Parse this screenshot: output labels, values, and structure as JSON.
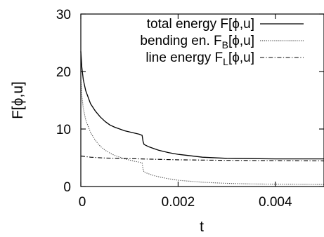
{
  "chart_data": {
    "type": "line",
    "xlabel": "t",
    "ylabel": "F[ϕ,u]",
    "xlim": [
      0,
      0.005
    ],
    "ylim": [
      0,
      30
    ],
    "x_ticks": [
      "0",
      "0.002",
      "0.004"
    ],
    "x_tick_values": [
      0,
      0.002,
      0.004
    ],
    "y_ticks": [
      "0",
      "10",
      "20",
      "30"
    ],
    "y_tick_values": [
      0,
      10,
      20,
      30
    ],
    "grid": false,
    "legend_position": "top-right",
    "series": [
      {
        "name": "total energy F[ϕ,u]",
        "style": "solid",
        "color": "#000000",
        "x": [
          0,
          2e-05,
          5e-05,
          0.0001,
          0.0002,
          0.0003,
          0.0004,
          0.0005,
          0.0006,
          0.0007,
          0.0008,
          0.0009,
          0.001,
          0.0011,
          0.0012,
          0.00126,
          0.00128,
          0.0013,
          0.0014,
          0.0015,
          0.0016,
          0.0018,
          0.002,
          0.0022,
          0.0025,
          0.003,
          0.0035,
          0.004,
          0.0045,
          0.005
        ],
        "values": [
          23.5,
          20.8,
          18.6,
          16.7,
          14.4,
          13.1,
          12.1,
          11.3,
          10.7,
          10.3,
          10.0,
          9.7,
          9.5,
          9.3,
          9.1,
          8.9,
          7.8,
          7.3,
          6.9,
          6.6,
          6.3,
          5.9,
          5.6,
          5.4,
          5.1,
          4.9,
          4.85,
          4.8,
          4.8,
          4.8
        ]
      },
      {
        "name": "bending en. F_B[ϕ,u]",
        "style": "dotted",
        "color": "#555555",
        "x": [
          0,
          2e-05,
          5e-05,
          0.0001,
          0.0002,
          0.0003,
          0.0004,
          0.0005,
          0.0006,
          0.0007,
          0.0008,
          0.0009,
          0.001,
          0.0011,
          0.0012,
          0.00126,
          0.00128,
          0.0013,
          0.0014,
          0.0015,
          0.0016,
          0.0018,
          0.002,
          0.0022,
          0.0025,
          0.003,
          0.0035,
          0.004,
          0.0045,
          0.005
        ],
        "values": [
          18.5,
          15.8,
          13.6,
          11.6,
          9.4,
          8.0,
          7.0,
          6.3,
          5.8,
          5.4,
          5.1,
          4.8,
          4.6,
          4.4,
          4.25,
          4.1,
          3.0,
          2.5,
          2.2,
          1.9,
          1.7,
          1.35,
          1.1,
          0.95,
          0.75,
          0.55,
          0.45,
          0.4,
          0.38,
          0.35
        ]
      },
      {
        "name": "line energy F_L[ϕ,u]",
        "style": "dash-dot",
        "color": "#000000",
        "x": [
          0,
          0.0002,
          0.0005,
          0.001,
          0.0015,
          0.002,
          0.003,
          0.004,
          0.005
        ],
        "values": [
          5.3,
          5.1,
          4.95,
          4.85,
          4.75,
          4.65,
          4.55,
          4.5,
          4.45
        ]
      }
    ]
  },
  "legend": {
    "entries": [
      {
        "main": "total energy F[ϕ,u]",
        "sub": "",
        "rest": ""
      },
      {
        "main": "bending en. F",
        "sub": "B",
        "rest": "[ϕ,u]"
      },
      {
        "main": "line energy F",
        "sub": "L",
        "rest": "[ϕ,u]"
      }
    ]
  }
}
